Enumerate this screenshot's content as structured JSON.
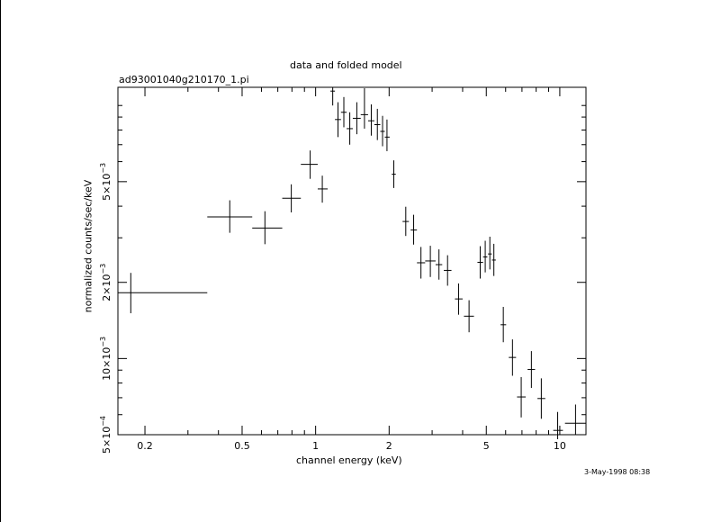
{
  "chart_data": {
    "type": "scatter",
    "title": "data and folded model",
    "subtitle": "ad93001040g210170_1.pi",
    "xlabel": "channel energy (keV)",
    "ylabel": "normalized counts/sec/keV",
    "x_scale": "log",
    "y_scale": "log",
    "xlim": [
      0.155,
      12.8
    ],
    "ylim": [
      0.0005,
      0.0118
    ],
    "x_ticks": [
      {
        "value": 0.2,
        "label": "0.2"
      },
      {
        "value": 0.5,
        "label": "0.5"
      },
      {
        "value": 1,
        "label": "1"
      },
      {
        "value": 2,
        "label": "2"
      },
      {
        "value": 5,
        "label": "5"
      },
      {
        "value": 10,
        "label": "10"
      }
    ],
    "y_ticks": [
      {
        "value": 0.0005,
        "mant": "5",
        "exp": "−4"
      },
      {
        "value": 0.001,
        "mant": "10",
        "exp": "−3"
      },
      {
        "value": 0.002,
        "mant": "2",
        "exp": "−3"
      },
      {
        "value": 0.005,
        "mant": "5",
        "exp": "−3"
      }
    ],
    "timestamp": "3-May-1998 08:38",
    "points": [
      {
        "x": 0.175,
        "xlo": 0.155,
        "xhi": 0.36,
        "y": 0.00182,
        "ylo": 0.00151,
        "yhi": 0.00218
      },
      {
        "x": 0.445,
        "xlo": 0.36,
        "xhi": 0.55,
        "y": 0.00363,
        "ylo": 0.00314,
        "yhi": 0.00422
      },
      {
        "x": 0.62,
        "xlo": 0.55,
        "xhi": 0.73,
        "y": 0.00328,
        "ylo": 0.00283,
        "yhi": 0.00382
      },
      {
        "x": 0.795,
        "xlo": 0.73,
        "xhi": 0.87,
        "y": 0.0043,
        "ylo": 0.00378,
        "yhi": 0.00488
      },
      {
        "x": 0.95,
        "xlo": 0.87,
        "xhi": 1.02,
        "y": 0.00585,
        "ylo": 0.00513,
        "yhi": 0.00664
      },
      {
        "x": 1.065,
        "xlo": 1.02,
        "xhi": 1.12,
        "y": 0.00468,
        "ylo": 0.00413,
        "yhi": 0.00528
      },
      {
        "x": 1.175,
        "xlo": 1.15,
        "xhi": 1.2,
        "y": 0.0114,
        "ylo": 0.01,
        "yhi": 0.0118
      },
      {
        "x": 1.235,
        "xlo": 1.2,
        "xhi": 1.27,
        "y": 0.0088,
        "ylo": 0.0075,
        "yhi": 0.0103
      },
      {
        "x": 1.305,
        "xlo": 1.27,
        "xhi": 1.34,
        "y": 0.0094,
        "ylo": 0.0082,
        "yhi": 0.0108
      },
      {
        "x": 1.38,
        "xlo": 1.34,
        "xhi": 1.42,
        "y": 0.0081,
        "ylo": 0.007,
        "yhi": 0.0094
      },
      {
        "x": 1.475,
        "xlo": 1.42,
        "xhi": 1.53,
        "y": 0.0089,
        "ylo": 0.0077,
        "yhi": 0.0103
      },
      {
        "x": 1.585,
        "xlo": 1.53,
        "xhi": 1.64,
        "y": 0.0092,
        "ylo": 0.0081,
        "yhi": 0.0117
      },
      {
        "x": 1.69,
        "xlo": 1.64,
        "xhi": 1.74,
        "y": 0.0087,
        "ylo": 0.0076,
        "yhi": 0.0101
      },
      {
        "x": 1.79,
        "xlo": 1.74,
        "xhi": 1.84,
        "y": 0.0084,
        "ylo": 0.0073,
        "yhi": 0.0097
      },
      {
        "x": 1.88,
        "xlo": 1.84,
        "xhi": 1.92,
        "y": 0.0079,
        "ylo": 0.0069,
        "yhi": 0.0091
      },
      {
        "x": 1.96,
        "xlo": 1.92,
        "xhi": 2.01,
        "y": 0.0075,
        "ylo": 0.0066,
        "yhi": 0.0088
      },
      {
        "x": 2.09,
        "xlo": 2.05,
        "xhi": 2.13,
        "y": 0.00535,
        "ylo": 0.00472,
        "yhi": 0.00607
      },
      {
        "x": 2.34,
        "xlo": 2.27,
        "xhi": 2.41,
        "y": 0.00348,
        "ylo": 0.00305,
        "yhi": 0.00398
      },
      {
        "x": 2.52,
        "xlo": 2.45,
        "xhi": 2.6,
        "y": 0.00322,
        "ylo": 0.00282,
        "yhi": 0.0037
      },
      {
        "x": 2.7,
        "xlo": 2.6,
        "xhi": 2.81,
        "y": 0.00239,
        "ylo": 0.00207,
        "yhi": 0.00276
      },
      {
        "x": 2.95,
        "xlo": 2.81,
        "xhi": 3.1,
        "y": 0.00243,
        "ylo": 0.0021,
        "yhi": 0.00279
      },
      {
        "x": 3.2,
        "xlo": 3.1,
        "xhi": 3.3,
        "y": 0.00235,
        "ylo": 0.00205,
        "yhi": 0.0027
      },
      {
        "x": 3.47,
        "xlo": 3.35,
        "xhi": 3.6,
        "y": 0.00223,
        "ylo": 0.00194,
        "yhi": 0.00256
      },
      {
        "x": 3.85,
        "xlo": 3.72,
        "xhi": 4.0,
        "y": 0.00172,
        "ylo": 0.00149,
        "yhi": 0.00198
      },
      {
        "x": 4.25,
        "xlo": 4.05,
        "xhi": 4.45,
        "y": 0.00147,
        "ylo": 0.00127,
        "yhi": 0.0017
      },
      {
        "x": 4.72,
        "xlo": 4.6,
        "xhi": 4.85,
        "y": 0.0024,
        "ylo": 0.00207,
        "yhi": 0.00278
      },
      {
        "x": 4.95,
        "xlo": 4.85,
        "xhi": 5.05,
        "y": 0.00252,
        "ylo": 0.00219,
        "yhi": 0.00292
      },
      {
        "x": 5.17,
        "xlo": 5.08,
        "xhi": 5.27,
        "y": 0.00259,
        "ylo": 0.00225,
        "yhi": 0.00303
      },
      {
        "x": 5.37,
        "xlo": 5.27,
        "xhi": 5.47,
        "y": 0.00245,
        "ylo": 0.00212,
        "yhi": 0.00284
      },
      {
        "x": 5.87,
        "xlo": 5.72,
        "xhi": 6.03,
        "y": 0.00136,
        "ylo": 0.00116,
        "yhi": 0.0016
      },
      {
        "x": 6.4,
        "xlo": 6.18,
        "xhi": 6.62,
        "y": 0.00101,
        "ylo": 0.000855,
        "yhi": 0.00119
      },
      {
        "x": 6.95,
        "xlo": 6.68,
        "xhi": 7.25,
        "y": 0.000705,
        "ylo": 0.000585,
        "yhi": 0.000845
      },
      {
        "x": 7.65,
        "xlo": 7.38,
        "xhi": 7.92,
        "y": 0.000905,
        "ylo": 0.000765,
        "yhi": 0.00107
      },
      {
        "x": 8.4,
        "xlo": 8.1,
        "xhi": 8.72,
        "y": 0.000695,
        "ylo": 0.000578,
        "yhi": 0.000835
      },
      {
        "x": 9.8,
        "xlo": 9.4,
        "xhi": 10.3,
        "y": 0.00052,
        "ylo": 0.00048,
        "yhi": 0.000615
      },
      {
        "x": 11.6,
        "xlo": 10.5,
        "xhi": 12.8,
        "y": 0.000555,
        "ylo": 0.0005,
        "yhi": 0.000658
      }
    ]
  }
}
